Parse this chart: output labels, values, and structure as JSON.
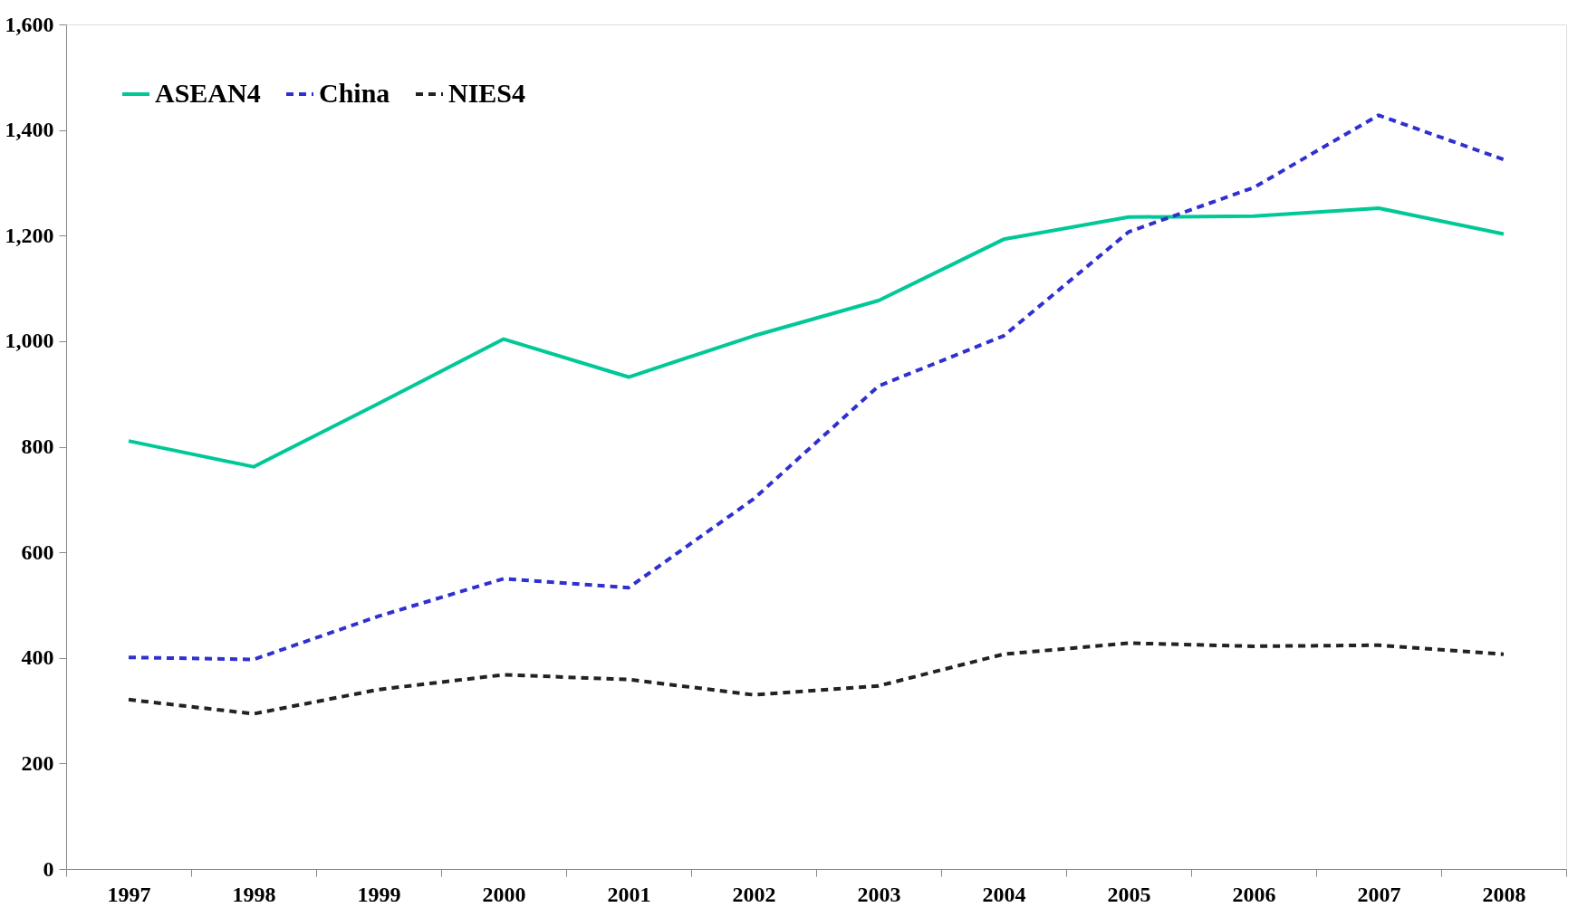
{
  "chart_data": {
    "type": "line",
    "categories": [
      "1997",
      "1998",
      "1999",
      "2000",
      "2001",
      "2002",
      "2003",
      "2004",
      "2005",
      "2006",
      "2007",
      "2008"
    ],
    "series": [
      {
        "name": "ASEAN4",
        "color": "#00c896",
        "line_style": "solid",
        "values": [
          811,
          762,
          882,
          1004,
          932,
          1010,
          1077,
          1193,
          1235,
          1237,
          1252,
          1203
        ]
      },
      {
        "name": "China",
        "color": "#3030d0",
        "line_style": "dashed",
        "values": [
          401,
          397,
          479,
          550,
          533,
          701,
          915,
          1010,
          1207,
          1291,
          1428,
          1344
        ]
      },
      {
        "name": "NIES4",
        "color": "#222222",
        "line_style": "dashed",
        "values": [
          321,
          294,
          340,
          368,
          359,
          330,
          347,
          407,
          428,
          422,
          424,
          407
        ]
      }
    ],
    "ylim": [
      0,
      1600
    ],
    "yticks": [
      0,
      200,
      400,
      600,
      800,
      {
        "value": 1000,
        "label": "1,000"
      },
      {
        "value": 1200,
        "label": "1,200"
      },
      {
        "value": 1400,
        "label": "1,400"
      },
      {
        "value": 1600,
        "label": "1,600"
      }
    ],
    "grid": false,
    "legend": "top left",
    "marker": "none"
  }
}
